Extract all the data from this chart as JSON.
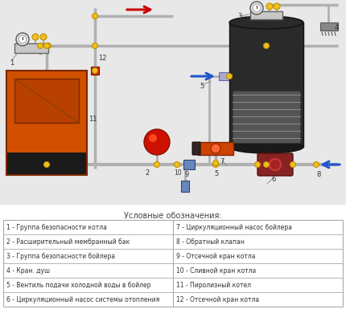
{
  "bg_color": "#f5f5f5",
  "legend_title": "Условные обозначения:",
  "legend_items_left": [
    "1 - Группа безопасности котла",
    "2 - Расширительный мембранный бак",
    "3 - Группа безопасности бойлера",
    "4 - Кран. душ",
    "5 - Вентиль подачи холодной воды в бойлер",
    "6 - Циркуляционный насос системы отопления"
  ],
  "legend_items_right": [
    "7 - Циркуляционный насос бойлера",
    "8 - Обратный клапан",
    "9 - Отсечной кран котла",
    "10 - Сливной кран котла",
    "11 - Пиролизный котел",
    "12 - Отсечной кран котла"
  ]
}
